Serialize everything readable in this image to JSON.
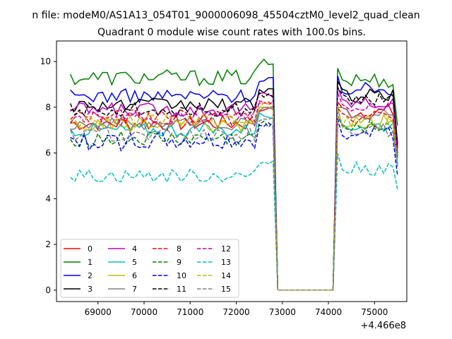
{
  "figure": {
    "suptitle": "n file: modeM0/AS1A13_054T01_9000006098_45504cztM0_level2_quad_clean",
    "title": "Quadrant 0 module wise count rates with 100.0s bins."
  },
  "chart_data": {
    "type": "line",
    "title": "Quadrant 0 module wise count rates with 100.0s bins.",
    "xlabel": "",
    "ylabel": "",
    "x_offset_label": "+4.466e8",
    "xlim": [
      68100,
      75700
    ],
    "ylim": [
      -0.5,
      10.9
    ],
    "xticks": [
      69000,
      70000,
      71000,
      72000,
      73000,
      74000,
      75000
    ],
    "yticks": [
      0,
      2,
      4,
      6,
      8,
      10
    ],
    "grid": false,
    "legend": {
      "placement": "lower-left",
      "columns": 4
    },
    "segments": [
      {
        "x_start": 68400,
        "x_end": 72800,
        "step": 100
      },
      {
        "x_start": 72900,
        "x_end": 74100,
        "step": 100
      },
      {
        "x_start": 74200,
        "x_end": 75500,
        "step": 100
      }
    ],
    "series": [
      {
        "name": "0",
        "color": "#ff0000",
        "dash": "solid",
        "seg1_mean": 7.3,
        "seg3_mean": 7.8,
        "end": 5.9,
        "amp": 0.35
      },
      {
        "name": "1",
        "color": "#008000",
        "dash": "solid",
        "seg1_mean": 9.3,
        "seg3_mean": 9.2,
        "end": 7.2,
        "amp": 0.35
      },
      {
        "name": "2",
        "color": "#0000ff",
        "dash": "solid",
        "seg1_mean": 8.5,
        "seg3_mean": 8.8,
        "end": 6.2,
        "amp": 0.3
      },
      {
        "name": "3",
        "color": "#000000",
        "dash": "solid",
        "seg1_mean": 8.1,
        "seg3_mean": 8.5,
        "end": 6.4,
        "amp": 0.3
      },
      {
        "name": "4",
        "color": "#bf00bf",
        "dash": "solid",
        "seg1_mean": 7.9,
        "seg3_mean": 8.2,
        "end": 5.8,
        "amp": 0.3
      },
      {
        "name": "5",
        "color": "#00bfbf",
        "dash": "solid",
        "seg1_mean": 7.0,
        "seg3_mean": 7.2,
        "end": 5.4,
        "amp": 0.3
      },
      {
        "name": "6",
        "color": "#bfbf00",
        "dash": "solid",
        "seg1_mean": 7.2,
        "seg3_mean": 7.4,
        "end": 6.0,
        "amp": 0.3
      },
      {
        "name": "7",
        "color": "#808080",
        "dash": "solid",
        "seg1_mean": 7.3,
        "seg3_mean": 7.7,
        "end": 6.1,
        "amp": 0.3
      },
      {
        "name": "8",
        "color": "#ff0000",
        "dash": "dashed",
        "seg1_mean": 7.6,
        "seg3_mean": 7.6,
        "end": 6.0,
        "amp": 0.3
      },
      {
        "name": "9",
        "color": "#008000",
        "dash": "dashed",
        "seg1_mean": 6.6,
        "seg3_mean": 7.2,
        "end": 5.8,
        "amp": 0.35
      },
      {
        "name": "10",
        "color": "#0000ff",
        "dash": "dashed",
        "seg1_mean": 6.5,
        "seg3_mean": 7.0,
        "end": 5.0,
        "amp": 0.4
      },
      {
        "name": "11",
        "color": "#000000",
        "dash": "dashed",
        "seg1_mean": 7.9,
        "seg3_mean": 8.3,
        "end": 6.2,
        "amp": 0.3
      },
      {
        "name": "12",
        "color": "#bf00bf",
        "dash": "dashed",
        "seg1_mean": 7.5,
        "seg3_mean": 8.0,
        "end": 6.0,
        "amp": 0.3
      },
      {
        "name": "13",
        "color": "#00bfbf",
        "dash": "dashed",
        "seg1_mean": 5.0,
        "seg3_mean": 5.3,
        "end": 4.4,
        "amp": 0.3
      },
      {
        "name": "14",
        "color": "#bfbf00",
        "dash": "dashed",
        "seg1_mean": 7.4,
        "seg3_mean": 7.3,
        "end": 5.7,
        "amp": 0.3
      },
      {
        "name": "15",
        "color": "#808080",
        "dash": "dashed",
        "seg1_mean": 6.8,
        "seg3_mean": 7.0,
        "end": 5.5,
        "amp": 0.3
      }
    ]
  }
}
